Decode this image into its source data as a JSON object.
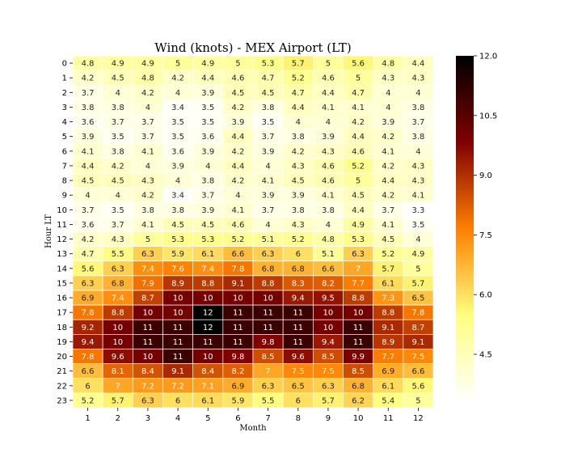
{
  "chart_data": {
    "type": "heatmap",
    "title": "Wind (knots) - MEX Airport (LT)",
    "xlabel": "Month",
    "ylabel": "Hour LT",
    "x_categories": [
      "1",
      "2",
      "3",
      "4",
      "5",
      "6",
      "7",
      "8",
      "9",
      "10",
      "11",
      "12"
    ],
    "y_categories": [
      "0",
      "1",
      "2",
      "3",
      "4",
      "5",
      "6",
      "7",
      "8",
      "9",
      "10",
      "11",
      "12",
      "13",
      "14",
      "15",
      "16",
      "17",
      "18",
      "19",
      "20",
      "21",
      "22",
      "23"
    ],
    "values": [
      [
        4.8,
        4.9,
        4.9,
        5,
        4.9,
        5,
        5.3,
        5.7,
        5,
        5.6,
        4.8,
        4.4
      ],
      [
        4.2,
        4.5,
        4.8,
        4.2,
        4.4,
        4.6,
        4.7,
        5.2,
        4.6,
        5,
        4.3,
        4.3
      ],
      [
        3.7,
        4,
        4.2,
        4,
        3.9,
        4.5,
        4.5,
        4.7,
        4.4,
        4.7,
        4,
        4
      ],
      [
        3.8,
        3.8,
        4,
        3.4,
        3.5,
        4.2,
        3.8,
        4.4,
        4.1,
        4.1,
        4,
        3.8
      ],
      [
        3.6,
        3.7,
        3.7,
        3.5,
        3.5,
        3.9,
        3.5,
        4,
        4,
        4.2,
        3.9,
        3.7
      ],
      [
        3.9,
        3.5,
        3.7,
        3.5,
        3.6,
        4.4,
        3.7,
        3.8,
        3.9,
        4.4,
        4.2,
        3.8
      ],
      [
        4.1,
        3.8,
        4.1,
        3.6,
        3.9,
        4.2,
        3.9,
        4.2,
        4.3,
        4.6,
        4.1,
        4
      ],
      [
        4.4,
        4.2,
        4,
        3.9,
        4,
        4.4,
        4,
        4.3,
        4.6,
        5.2,
        4.2,
        4.3
      ],
      [
        4.5,
        4.5,
        4.3,
        4,
        3.8,
        4.2,
        4.1,
        4.5,
        4.6,
        5,
        4.4,
        4.3
      ],
      [
        4,
        4,
        4.2,
        3.4,
        3.7,
        4,
        3.9,
        3.9,
        4.1,
        4.5,
        4.2,
        4.1
      ],
      [
        3.7,
        3.5,
        3.8,
        3.8,
        3.9,
        4.1,
        3.7,
        3.8,
        3.8,
        4.4,
        3.7,
        3.3
      ],
      [
        3.6,
        3.7,
        4.1,
        4.5,
        4.5,
        4.6,
        4,
        4.3,
        4,
        4.9,
        4.1,
        3.5
      ],
      [
        4.2,
        4.3,
        5,
        5.3,
        5.3,
        5.2,
        5.1,
        5.2,
        4.8,
        5.3,
        4.5,
        4
      ],
      [
        4.7,
        5.5,
        6.3,
        5.9,
        6.1,
        6.6,
        6.3,
        6,
        5.1,
        6.3,
        5.2,
        4.9
      ],
      [
        5.6,
        6.3,
        7.4,
        7.6,
        7.4,
        7.8,
        6.8,
        6.8,
        6.6,
        7,
        5.7,
        5
      ],
      [
        6.3,
        6.8,
        7.9,
        8.9,
        8.8,
        9.1,
        8.8,
        8.3,
        8.2,
        7.7,
        6.1,
        5.7
      ],
      [
        6.9,
        7.4,
        8.7,
        10,
        10,
        10,
        10,
        9.4,
        9.5,
        8.8,
        7.3,
        6.5
      ],
      [
        7.8,
        8.8,
        10,
        10,
        12,
        11,
        11,
        11,
        10,
        10,
        8.8,
        7.8
      ],
      [
        9.2,
        10,
        11,
        11,
        12,
        11,
        11,
        11,
        10,
        11,
        9.1,
        8.7
      ],
      [
        9.4,
        10,
        11,
        11,
        11,
        11,
        9.8,
        11,
        9.4,
        11,
        8.9,
        9.1
      ],
      [
        7.8,
        9.6,
        10,
        11,
        10,
        9.8,
        8.5,
        9.6,
        8.5,
        9.9,
        7.7,
        7.5
      ],
      [
        6.6,
        8.1,
        8.4,
        9.1,
        8.4,
        8.2,
        7,
        7.5,
        7.5,
        8.5,
        6.9,
        6.6
      ],
      [
        6,
        7,
        7.2,
        7.2,
        7.1,
        6.9,
        6.3,
        6.5,
        6.3,
        6.8,
        6.1,
        5.6
      ],
      [
        5.2,
        5.7,
        6.3,
        6,
        6.1,
        5.9,
        5.5,
        6,
        5.7,
        6.2,
        5.4,
        5
      ]
    ],
    "colorbar": {
      "colormap": "afmhot_r",
      "range": [
        3.3,
        12.0
      ],
      "ticks": [
        4.5,
        6.0,
        7.5,
        9.0,
        10.5,
        12.0
      ],
      "tick_labels": [
        "4.5",
        "6.0",
        "7.5",
        "9.0",
        "10.5",
        "12.0"
      ]
    },
    "cell_border_color": "#ffffff",
    "grid": false,
    "legend": "none"
  }
}
